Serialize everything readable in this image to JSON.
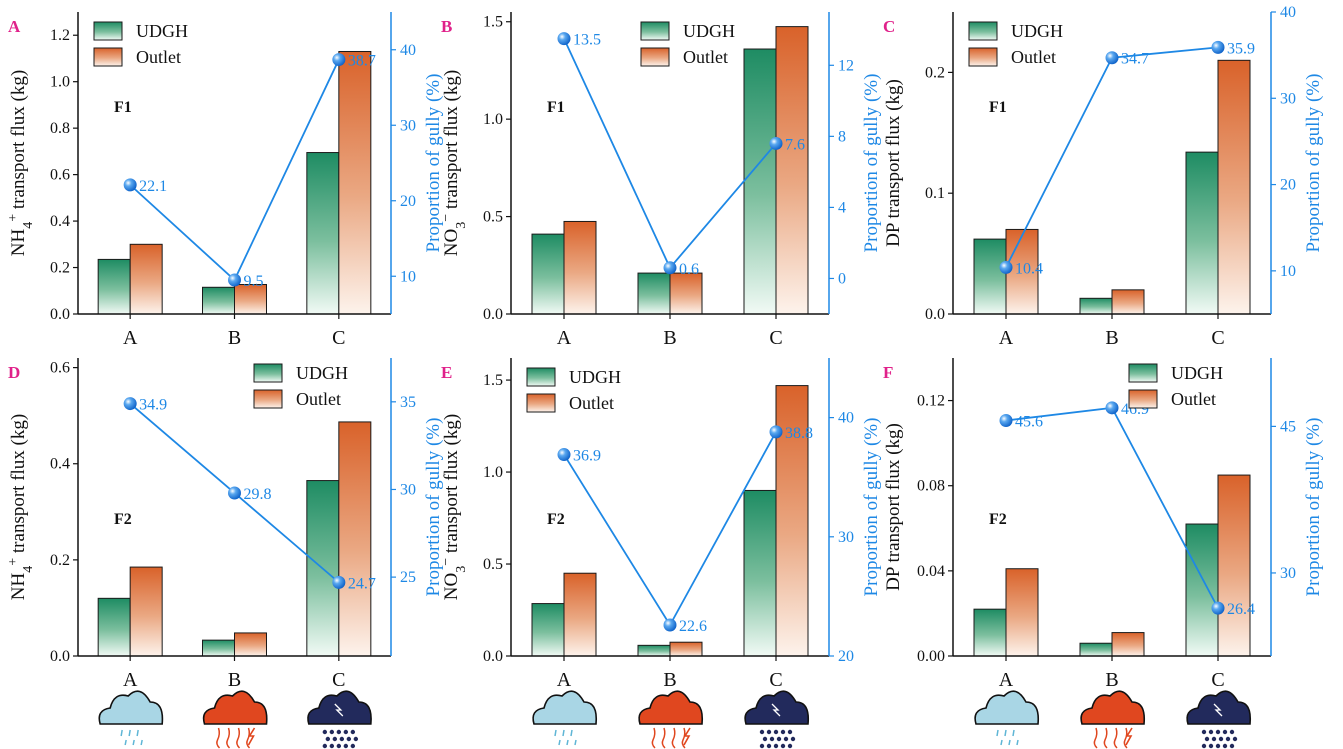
{
  "figure": {
    "categories": [
      "A",
      "B",
      "C"
    ],
    "legend": [
      "UDGH",
      "Outlet"
    ],
    "right_axis_label": "Proportion of gully (%)",
    "colors": {
      "udgh_top": "#1e8c63",
      "outlet_top": "#d9622a",
      "line": "#1e88e5",
      "panel_letter": "#e0218a"
    },
    "rain_icons": [
      "light-rain-cloud-icon",
      "thunderstorm-rain-cloud-icon",
      "heavy-rain-cloud-icon"
    ]
  },
  "chart_data": [
    {
      "panel": "A",
      "type": "bar",
      "factor": "F1",
      "ylabel_species": "NH4+",
      "ylabel_rest": "transport flux (kg)",
      "categories": [
        "A",
        "B",
        "C"
      ],
      "series": [
        {
          "name": "UDGH",
          "values": [
            0.235,
            0.115,
            0.695
          ]
        },
        {
          "name": "Outlet",
          "values": [
            0.3,
            0.127,
            1.13
          ]
        }
      ],
      "line": {
        "name": "Proportion of gully (%)",
        "values": [
          22.1,
          9.5,
          38.7
        ],
        "labels": [
          "22.1",
          "9.5",
          "38.7"
        ]
      },
      "ylim": [
        0,
        1.3
      ],
      "yticks": [
        0,
        0.2,
        0.4,
        0.6,
        0.8,
        1.0,
        1.2
      ],
      "yticklabels": [
        "0.0",
        "0.2",
        "0.4",
        "0.6",
        "0.8",
        "1.0",
        "1.2"
      ],
      "y2lim": [
        5,
        45
      ],
      "y2ticks": [
        10,
        20,
        30,
        40
      ],
      "y2ticklabels": [
        "10",
        "20",
        "30",
        "40"
      ],
      "legend_position": "top-left"
    },
    {
      "panel": "B",
      "type": "bar",
      "factor": "F1",
      "ylabel_species": "NO3−",
      "ylabel_rest": "transport flux (kg)",
      "categories": [
        "A",
        "B",
        "C"
      ],
      "series": [
        {
          "name": "UDGH",
          "values": [
            0.41,
            0.21,
            1.36
          ]
        },
        {
          "name": "Outlet",
          "values": [
            0.475,
            0.21,
            1.475
          ]
        }
      ],
      "line": {
        "name": "Proportion of gully (%)",
        "values": [
          13.5,
          0.6,
          7.6
        ],
        "labels": [
          "13.5",
          "0.6",
          "7.6"
        ]
      },
      "ylim": [
        0,
        1.55
      ],
      "yticks": [
        0,
        0.5,
        1.0,
        1.5
      ],
      "yticklabels": [
        "0.0",
        "0.5",
        "1.0",
        "1.5"
      ],
      "y2lim": [
        -2,
        15
      ],
      "y2ticks": [
        0,
        4,
        8,
        12
      ],
      "y2ticklabels": [
        "0",
        "4",
        "8",
        "12"
      ],
      "legend_position": "top-center"
    },
    {
      "panel": "C",
      "type": "bar",
      "factor": "F1",
      "ylabel_species": "DP",
      "ylabel_rest": "transport flux (kg)",
      "categories": [
        "A",
        "B",
        "C"
      ],
      "series": [
        {
          "name": "UDGH",
          "values": [
            0.062,
            0.013,
            0.134
          ]
        },
        {
          "name": "Outlet",
          "values": [
            0.07,
            0.02,
            0.21
          ]
        }
      ],
      "line": {
        "name": "Proportion of gully (%)",
        "values": [
          10.4,
          34.7,
          35.9
        ],
        "labels": [
          "10.4",
          "34.7",
          "35.9"
        ]
      },
      "ylim": [
        0,
        0.25
      ],
      "yticks": [
        0,
        0.1,
        0.2
      ],
      "yticklabels": [
        "0.0",
        "0.1",
        "0.2"
      ],
      "y2lim": [
        5,
        40
      ],
      "y2ticks": [
        10,
        20,
        30,
        40
      ],
      "y2ticklabels": [
        "10",
        "20",
        "30",
        "40"
      ],
      "legend_position": "top-left"
    },
    {
      "panel": "D",
      "type": "bar",
      "factor": "F2",
      "ylabel_species": "NH4+",
      "ylabel_rest": "transport flux (kg)",
      "categories": [
        "A",
        "B",
        "C"
      ],
      "series": [
        {
          "name": "UDGH",
          "values": [
            0.12,
            0.033,
            0.365
          ]
        },
        {
          "name": "Outlet",
          "values": [
            0.185,
            0.048,
            0.487
          ]
        }
      ],
      "line": {
        "name": "Proportion of gully (%)",
        "values": [
          34.9,
          29.8,
          24.7
        ],
        "labels": [
          "34.9",
          "29.8",
          "24.7"
        ]
      },
      "ylim": [
        0,
        0.62
      ],
      "yticks": [
        0,
        0.2,
        0.4,
        0.6
      ],
      "yticklabels": [
        "0.0",
        "0.2",
        "0.4",
        "0.6"
      ],
      "y2lim": [
        20.5,
        37.5
      ],
      "y2ticks": [
        25,
        30,
        35
      ],
      "y2ticklabels": [
        "25",
        "30",
        "35"
      ],
      "legend_position": "top-right"
    },
    {
      "panel": "E",
      "type": "bar",
      "factor": "F2",
      "ylabel_species": "NO3−",
      "ylabel_rest": "transport flux (kg)",
      "categories": [
        "A",
        "B",
        "C"
      ],
      "series": [
        {
          "name": "UDGH",
          "values": [
            0.285,
            0.058,
            0.9
          ]
        },
        {
          "name": "Outlet",
          "values": [
            0.45,
            0.075,
            1.47
          ]
        }
      ],
      "line": {
        "name": "Proportion of gully (%)",
        "values": [
          36.9,
          22.6,
          38.8
        ],
        "labels": [
          "36.9",
          "22.6",
          "38.8"
        ]
      },
      "ylim": [
        0,
        1.62
      ],
      "yticks": [
        0,
        0.5,
        1.0,
        1.5
      ],
      "yticklabels": [
        "0.0",
        "0.5",
        "1.0",
        "1.5"
      ],
      "y2lim": [
        20,
        45
      ],
      "y2ticks": [
        20,
        30,
        40
      ],
      "y2ticklabels": [
        "20",
        "30",
        "40"
      ],
      "legend_position": "top-left"
    },
    {
      "panel": "F",
      "type": "bar",
      "factor": "F2",
      "ylabel_species": "DP",
      "ylabel_rest": "transport flux (kg)",
      "categories": [
        "A",
        "B",
        "C"
      ],
      "series": [
        {
          "name": "UDGH",
          "values": [
            0.022,
            0.006,
            0.062
          ]
        },
        {
          "name": "Outlet",
          "values": [
            0.041,
            0.011,
            0.085
          ]
        }
      ],
      "line": {
        "name": "Proportion of gully (%)",
        "values": [
          45.6,
          46.9,
          26.4
        ],
        "labels": [
          "45.6",
          "46.9",
          "26.4"
        ]
      },
      "ylim": [
        0,
        0.14
      ],
      "yticks": [
        0,
        0.04,
        0.08,
        0.12
      ],
      "yticklabels": [
        "0.00",
        "0.04",
        "0.08",
        "0.12"
      ],
      "y2lim": [
        21.5,
        52
      ],
      "y2ticks": [
        30,
        45
      ],
      "y2ticklabels": [
        "30",
        "45"
      ],
      "legend_position": "top-right"
    }
  ]
}
